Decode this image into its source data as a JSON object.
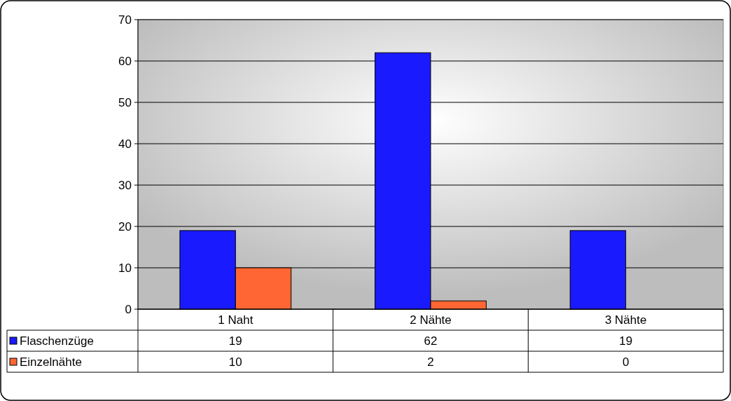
{
  "chart_data": {
    "type": "bar",
    "categories": [
      "1 Naht",
      "2 Nähte",
      "3 Nähte"
    ],
    "series": [
      {
        "name": "Flaschenzüge",
        "color": "#1a1aff",
        "values": [
          19,
          62,
          19
        ]
      },
      {
        "name": "Einzelnähte",
        "color": "#ff6633",
        "values": [
          10,
          2,
          0
        ]
      }
    ],
    "ylim": [
      0,
      70
    ],
    "yticks": [
      0,
      10,
      20,
      30,
      40,
      50,
      60,
      70
    ],
    "grid": "y",
    "legend": "bottom left",
    "data_labels": true
  }
}
